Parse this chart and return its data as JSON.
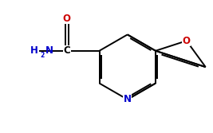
{
  "bg_color": "#ffffff",
  "line_color": "#000000",
  "N_color": "#0000cc",
  "O_color": "#cc0000",
  "bond_lw": 1.4,
  "figsize": [
    2.67,
    1.67
  ],
  "dpi": 100,
  "xlim": [
    0,
    10
  ],
  "ylim": [
    0,
    6.25
  ],
  "font_size": 8.5
}
